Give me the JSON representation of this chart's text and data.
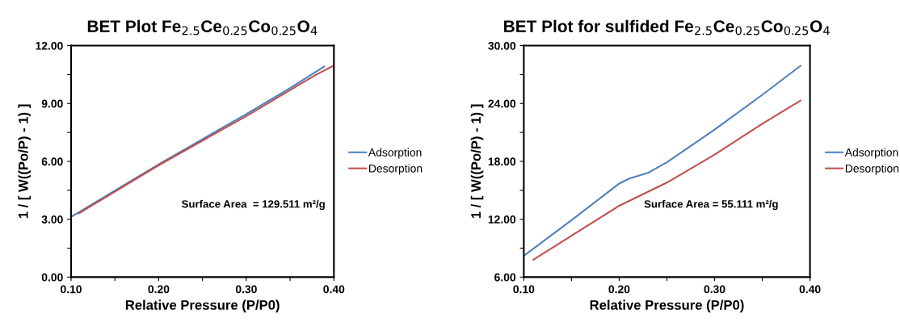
{
  "chart_data": [
    {
      "type": "line",
      "title": "BET Plot Fe$_{2.5}$Ce$_{0.25}$Co$_{0.25}$O$_{4}$",
      "xlabel": "Relative Pressure (P/P0)",
      "ylabel": "1 / [ W((Po/P) - 1) ]",
      "xlim": [
        0.1,
        0.4
      ],
      "xticks": [
        {
          "value": 0.1,
          "label": "0.10"
        },
        {
          "value": 0.15,
          "label": null
        },
        {
          "value": 0.2,
          "label": "0.20"
        },
        {
          "value": 0.25,
          "label": null
        },
        {
          "value": 0.3,
          "label": "0.30"
        },
        {
          "value": 0.35,
          "label": null
        },
        {
          "value": 0.4,
          "label": "0.40"
        }
      ],
      "ylim": [
        0,
        12
      ],
      "yticks": [
        {
          "value": 0,
          "label": "0.00"
        },
        {
          "value": 1.5,
          "label": null
        },
        {
          "value": 3,
          "label": "3.00"
        },
        {
          "value": 4.5,
          "label": null
        },
        {
          "value": 6,
          "label": "6.00"
        },
        {
          "value": 7.5,
          "label": null
        },
        {
          "value": 9,
          "label": "9.00"
        },
        {
          "value": 10.5,
          "label": null
        },
        {
          "value": 12,
          "label": "12.00"
        }
      ],
      "grid": false,
      "legend": "right",
      "marker": "none",
      "line_style": "solid",
      "series": [
        {
          "name": "Adsorption",
          "color": "#4f81bd",
          "x": [
            0.1,
            0.2,
            0.3,
            0.35,
            0.389
          ],
          "values": [
            3.12,
            5.85,
            8.45,
            9.8,
            10.92
          ]
        },
        {
          "name": "Desorption",
          "color": "#c0504d",
          "x": [
            0.109,
            0.2,
            0.3,
            0.35,
            0.38,
            0.4
          ],
          "values": [
            3.31,
            5.8,
            8.35,
            9.7,
            10.5,
            10.97
          ]
        }
      ],
      "annotations": [
        "Surface Area  = 129.511 m²/g"
      ]
    },
    {
      "type": "line",
      "title": "BET Plot for sulfided Fe$_{2.5}$Ce$_{0.25}$Co$_{0.25}$O$_{4}$",
      "xlabel": "Relative Pressure (P/P0)",
      "ylabel": "1 / [ W((Po/P) - 1) ]",
      "xlim": [
        0.1,
        0.4
      ],
      "xticks": [
        {
          "value": 0.1,
          "label": "0.10"
        },
        {
          "value": 0.15,
          "label": null
        },
        {
          "value": 0.2,
          "label": "0.20"
        },
        {
          "value": 0.25,
          "label": null
        },
        {
          "value": 0.3,
          "label": "0.30"
        },
        {
          "value": 0.35,
          "label": null
        },
        {
          "value": 0.4,
          "label": "0.40"
        }
      ],
      "ylim": [
        6,
        30
      ],
      "yticks": [
        {
          "value": 6,
          "label": "6.00"
        },
        {
          "value": 9,
          "label": null
        },
        {
          "value": 12,
          "label": "12.00"
        },
        {
          "value": 15,
          "label": null
        },
        {
          "value": 18,
          "label": "18.00"
        },
        {
          "value": 21,
          "label": null
        },
        {
          "value": 24,
          "label": "24.00"
        },
        {
          "value": 27,
          "label": null
        },
        {
          "value": 30,
          "label": "30.00"
        }
      ],
      "grid": false,
      "legend": "right",
      "marker": "none",
      "line_style": "solid",
      "series": [
        {
          "name": "Adsorption",
          "color": "#4f81bd",
          "x": [
            0.1,
            0.15,
            0.2,
            0.21,
            0.23,
            0.25,
            0.3,
            0.35,
            0.39
          ],
          "values": [
            8.2,
            11.9,
            15.7,
            16.2,
            16.8,
            17.9,
            21.3,
            24.9,
            27.9
          ]
        },
        {
          "name": "Desorption",
          "color": "#c0504d",
          "x": [
            0.11,
            0.2,
            0.25,
            0.3,
            0.35,
            0.39
          ],
          "values": [
            7.8,
            13.4,
            15.8,
            18.7,
            21.9,
            24.3
          ]
        }
      ],
      "annotations": [
        "Surface Area = 55.111 m²/g"
      ]
    }
  ]
}
